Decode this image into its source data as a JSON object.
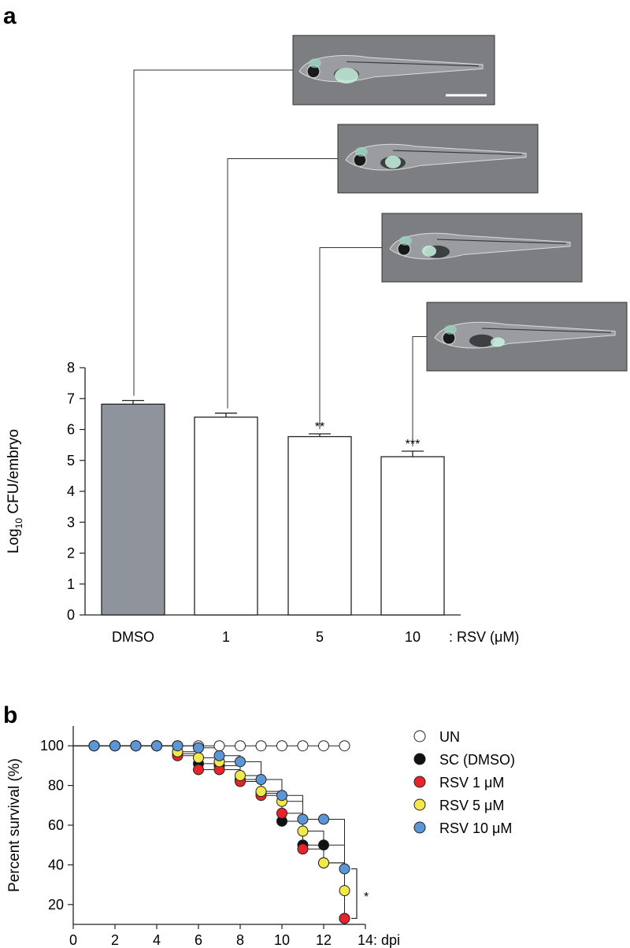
{
  "chart_data": [
    {
      "panel": "a",
      "type": "bar",
      "categories": [
        "DMSO",
        "1",
        "5",
        "10"
      ],
      "values": [
        6.82,
        6.4,
        5.77,
        5.12
      ],
      "errors": [
        0.12,
        0.13,
        0.09,
        0.18
      ],
      "significance": [
        "",
        "",
        "**",
        "***"
      ],
      "bar_colors": [
        "#8f939b",
        "#ffffff",
        "#ffffff",
        "#ffffff"
      ],
      "ylabel_main": "Log",
      "ylabel_sub": "10",
      "ylabel_rest": " CFU/embryo",
      "x_suffix": ": RSV (μM)",
      "ylim": [
        0,
        8
      ],
      "yticks": [
        0,
        1,
        2,
        3,
        4,
        5,
        6,
        7,
        8
      ],
      "images": [
        "zebrafish-dmso",
        "zebrafish-rsv-1",
        "zebrafish-rsv-5",
        "zebrafish-rsv-10"
      ]
    },
    {
      "panel": "b",
      "type": "line",
      "subtype": "kaplan-meier",
      "ylabel": "Percent survival (%)",
      "x_suffix": ": dpi",
      "xlim": [
        0,
        14
      ],
      "ylim": [
        10,
        110
      ],
      "xticks": [
        0,
        2,
        4,
        6,
        8,
        10,
        12,
        14
      ],
      "yticks": [
        20,
        40,
        60,
        80,
        100
      ],
      "significance": "*",
      "series": [
        {
          "name": "UN",
          "color": "#ffffff",
          "x": [
            1,
            2,
            3,
            4,
            5,
            6,
            7,
            8,
            9,
            10,
            11,
            12,
            13
          ],
          "y": [
            100,
            100,
            100,
            100,
            100,
            100,
            100,
            100,
            100,
            100,
            100,
            100,
            100
          ]
        },
        {
          "name": "SC (DMSO)",
          "color": "#111111",
          "x": [
            1,
            2,
            3,
            4,
            5,
            6,
            7,
            8,
            9,
            10,
            11,
            12,
            13
          ],
          "y": [
            100,
            100,
            100,
            100,
            96,
            91,
            90,
            83,
            76,
            62,
            50,
            50,
            13
          ]
        },
        {
          "name": "RSV 1 μM",
          "color": "#e8232b",
          "x": [
            1,
            2,
            3,
            4,
            5,
            6,
            7,
            8,
            9,
            10,
            11,
            12,
            13
          ],
          "y": [
            100,
            100,
            100,
            100,
            95,
            88,
            88,
            82,
            75,
            66,
            48,
            41,
            13
          ]
        },
        {
          "name": "RSV 5 μM",
          "color": "#f2e84a",
          "x": [
            1,
            2,
            3,
            4,
            5,
            6,
            7,
            8,
            9,
            10,
            11,
            12,
            13
          ],
          "y": [
            100,
            100,
            100,
            100,
            97,
            94,
            92,
            85,
            77,
            72,
            57,
            41,
            27
          ]
        },
        {
          "name": "RSV 10 μM",
          "color": "#5b97d6",
          "x": [
            1,
            2,
            3,
            4,
            5,
            6,
            7,
            8,
            9,
            10,
            11,
            12,
            13
          ],
          "y": [
            100,
            100,
            100,
            100,
            100,
            99,
            95,
            92,
            83,
            75,
            63,
            63,
            38
          ]
        }
      ]
    }
  ],
  "labels": {
    "panel_a": "a",
    "panel_b": "b"
  }
}
